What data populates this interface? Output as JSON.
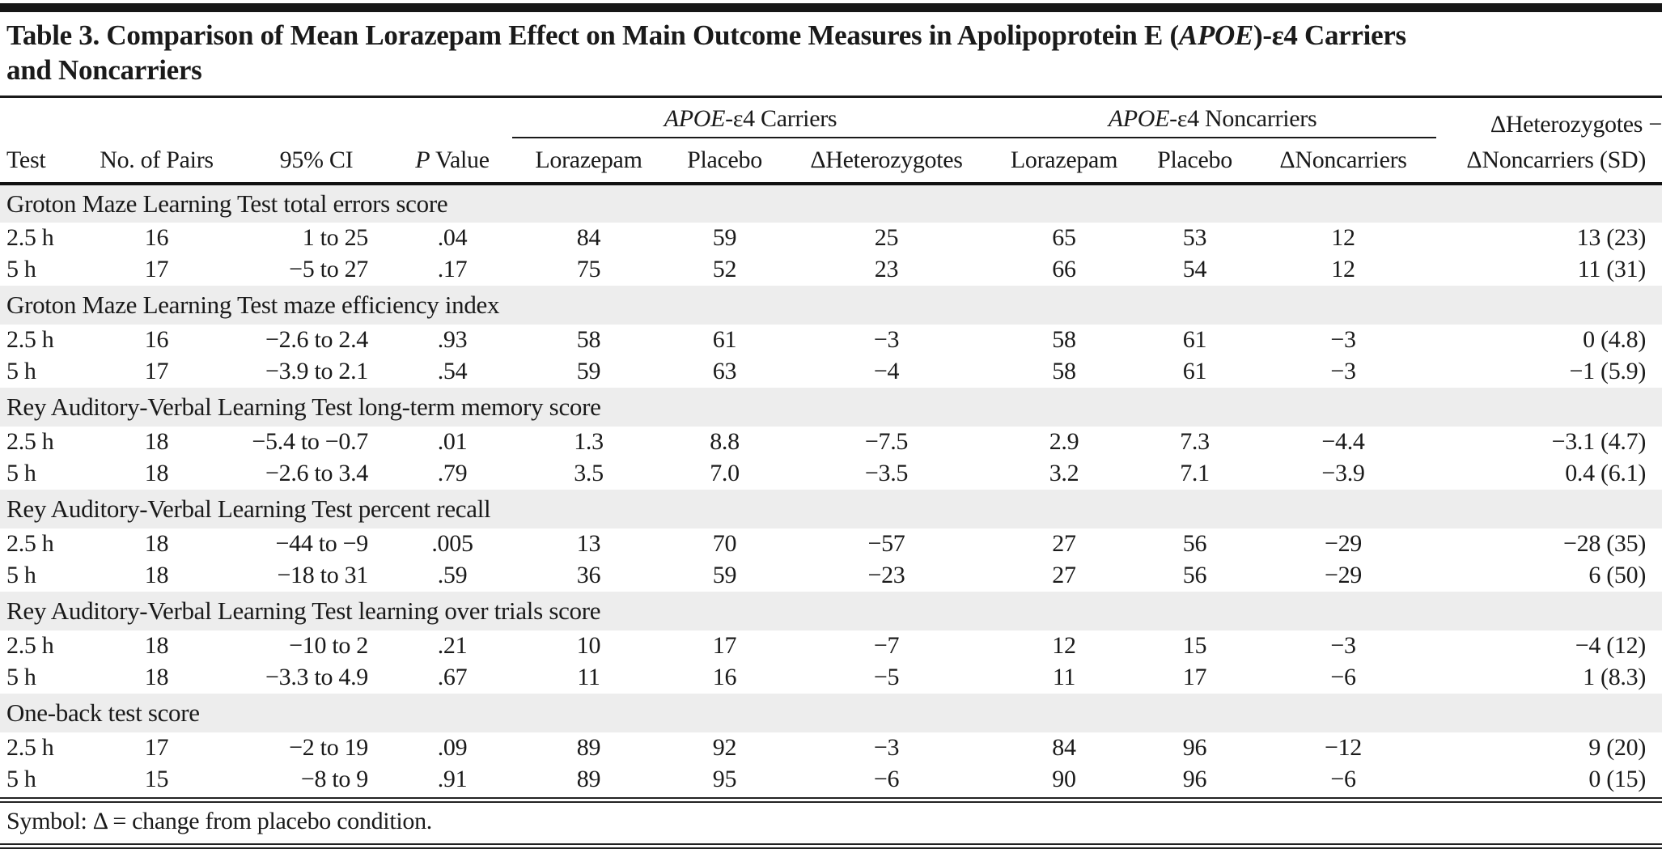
{
  "colors": {
    "section_band": "#ededed",
    "rule": "#1a1a1a",
    "top_bar": "#161616"
  },
  "title": {
    "line1_pre": "Table 3. Comparison of Mean Lorazepam Effect on Main Outcome Measures in Apolipoprotein E (",
    "line1_italic": "APOE",
    "line1_post": ")-ε4 Carriers",
    "line2": "and Noncarriers"
  },
  "header": {
    "test": "Test",
    "pairs": "No. of Pairs",
    "ci": "95% CI",
    "p_italic": "P",
    "p_rest": " Value",
    "groups": [
      {
        "italic": "APOE",
        "rest": "-ε4 Carriers"
      },
      {
        "italic": "APOE",
        "rest": "-ε4 Noncarriers"
      }
    ],
    "carrier_cols": {
      "lorazepam": "Lorazepam",
      "placebo": "Placebo",
      "delta": "ΔHeterozygotes"
    },
    "noncarrier_cols": {
      "lorazepam": "Lorazepam",
      "placebo": "Placebo",
      "delta": "ΔNoncarriers"
    },
    "last_col": {
      "line1": "ΔHeterozygotes −",
      "line2": "ΔNoncarriers (SD)"
    }
  },
  "sections": [
    {
      "label": "Groton Maze Learning Test total errors score",
      "rows": [
        {
          "t": "2.5 h",
          "n": "16",
          "ci": "1 to 25",
          "p": ".04",
          "cl": "84",
          "cp": "59",
          "cd": "25",
          "nl": "65",
          "np": "53",
          "nd": "12",
          "d": "13 (23)"
        },
        {
          "t": "5 h",
          "n": "17",
          "ci": "−5 to 27",
          "p": ".17",
          "cl": "75",
          "cp": "52",
          "cd": "23",
          "nl": "66",
          "np": "54",
          "nd": "12",
          "d": "11 (31)"
        }
      ]
    },
    {
      "label": "Groton Maze Learning Test maze efficiency index",
      "rows": [
        {
          "t": "2.5 h",
          "n": "16",
          "ci": "−2.6 to 2.4",
          "p": ".93",
          "cl": "58",
          "cp": "61",
          "cd": "−3",
          "nl": "58",
          "np": "61",
          "nd": "−3",
          "d": "0 (4.8)"
        },
        {
          "t": "5 h",
          "n": "17",
          "ci": "−3.9 to 2.1",
          "p": ".54",
          "cl": "59",
          "cp": "63",
          "cd": "−4",
          "nl": "58",
          "np": "61",
          "nd": "−3",
          "d": "−1 (5.9)"
        }
      ]
    },
    {
      "label": "Rey Auditory-Verbal Learning Test long-term memory score",
      "rows": [
        {
          "t": "2.5 h",
          "n": "18",
          "ci": "−5.4 to −0.7",
          "p": ".01",
          "cl": "1.3",
          "cp": "8.8",
          "cd": "−7.5",
          "nl": "2.9",
          "np": "7.3",
          "nd": "−4.4",
          "d": "−3.1 (4.7)"
        },
        {
          "t": "5 h",
          "n": "18",
          "ci": "−2.6 to 3.4",
          "p": ".79",
          "cl": "3.5",
          "cp": "7.0",
          "cd": "−3.5",
          "nl": "3.2",
          "np": "7.1",
          "nd": "−3.9",
          "d": "0.4 (6.1)"
        }
      ]
    },
    {
      "label": "Rey Auditory-Verbal Learning Test percent recall",
      "rows": [
        {
          "t": "2.5 h",
          "n": "18",
          "ci": "−44 to −9",
          "p": ".005",
          "cl": "13",
          "cp": "70",
          "cd": "−57",
          "nl": "27",
          "np": "56",
          "nd": "−29",
          "d": "−28 (35)"
        },
        {
          "t": "5 h",
          "n": "18",
          "ci": "−18 to 31",
          "p": ".59",
          "cl": "36",
          "cp": "59",
          "cd": "−23",
          "nl": "27",
          "np": "56",
          "nd": "−29",
          "d": "6 (50)"
        }
      ]
    },
    {
      "label": "Rey Auditory-Verbal Learning Test learning over trials score",
      "rows": [
        {
          "t": "2.5 h",
          "n": "18",
          "ci": "−10 to 2",
          "p": ".21",
          "cl": "10",
          "cp": "17",
          "cd": "−7",
          "nl": "12",
          "np": "15",
          "nd": "−3",
          "d": "−4 (12)"
        },
        {
          "t": "5 h",
          "n": "18",
          "ci": "−3.3 to 4.9",
          "p": ".67",
          "cl": "11",
          "cp": "16",
          "cd": "−5",
          "nl": "11",
          "np": "17",
          "nd": "−6",
          "d": "1 (8.3)"
        }
      ]
    },
    {
      "label": "One-back test score",
      "rows": [
        {
          "t": "2.5 h",
          "n": "17",
          "ci": "−2 to 19",
          "p": ".09",
          "cl": "89",
          "cp": "92",
          "cd": "−3",
          "nl": "84",
          "np": "96",
          "nd": "−12",
          "d": "9 (20)"
        },
        {
          "t": "5 h",
          "n": "15",
          "ci": "−8 to 9",
          "p": ".91",
          "cl": "89",
          "cp": "95",
          "cd": "−6",
          "nl": "90",
          "np": "96",
          "nd": "−6",
          "d": "0 (15)"
        }
      ]
    }
  ],
  "footnote": "Symbol: Δ = change from placebo condition."
}
